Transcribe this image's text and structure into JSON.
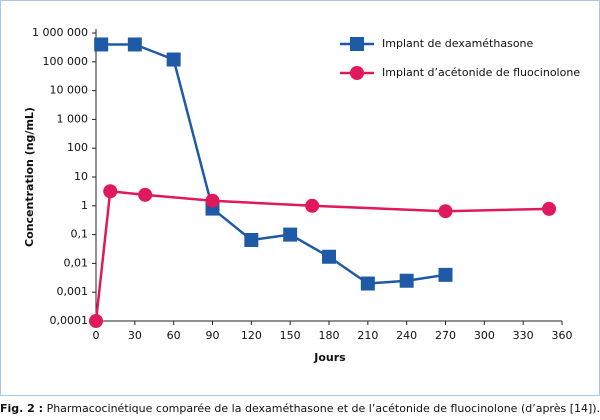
{
  "chart_data": {
    "type": "line",
    "xlabel": "Jours",
    "ylabel": "Concentration (ng/mL)",
    "yscale": "log",
    "legend": "top-right",
    "xlim": [
      0,
      360
    ],
    "xticks": [
      0,
      30,
      60,
      90,
      120,
      150,
      180,
      210,
      240,
      270,
      300,
      330,
      360
    ],
    "ylim": [
      0.0001,
      1000000
    ],
    "yticks": [
      {
        "value": 0.0001,
        "label": "0,0001"
      },
      {
        "value": 0.001,
        "label": "0,001"
      },
      {
        "value": 0.01,
        "label": "0,01"
      },
      {
        "value": 0.1,
        "label": "0,1"
      },
      1,
      10,
      100,
      {
        "value": 1000,
        "label": "1 000"
      },
      {
        "value": 10000,
        "label": "10 000"
      },
      {
        "value": 100000,
        "label": "100 000"
      },
      {
        "value": 1000000,
        "label": "1 000 000"
      }
    ],
    "series": [
      {
        "name": "Implant de dexaméthasone",
        "color": "#1f5aa6",
        "marker": "square",
        "x": [
          4,
          30,
          60,
          90,
          120,
          150,
          180,
          210,
          240,
          270
        ],
        "values": [
          400000,
          400000,
          120000,
          0.8,
          0.065,
          0.1,
          0.017,
          0.002,
          0.0025,
          0.004
        ]
      },
      {
        "name": "Implant d’acétonide de fluocinolone",
        "color": "#e0185e",
        "marker": "circle",
        "x": [
          0,
          11,
          38,
          90,
          167,
          270,
          350
        ],
        "values": [
          0.0001,
          3.2,
          2.4,
          1.5,
          1,
          0.65,
          0.78
        ]
      }
    ]
  },
  "caption": {
    "label": "Fig. 2 :",
    "text": "Pharmacocinétique comparée de la dexaméthasone et de l’acétonide de fluocinolone (d’après [14])."
  }
}
